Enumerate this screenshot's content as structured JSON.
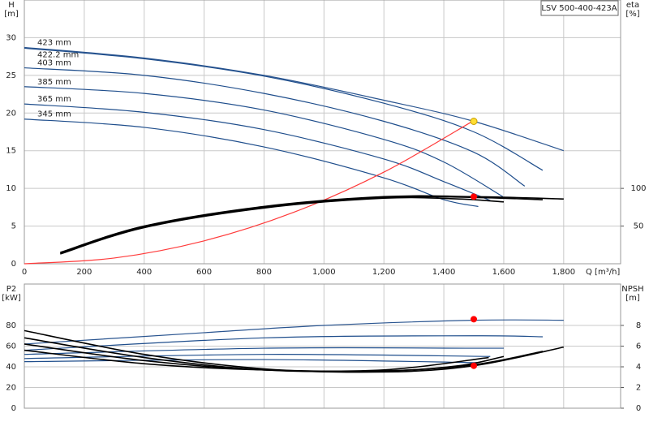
{
  "chart_data": [
    {
      "type": "line",
      "title": "LSV 500-400-423A",
      "ylabel": [
        "H",
        "[m]"
      ],
      "y2label": [
        "eta",
        "[%]"
      ],
      "xlabel": "Q [m³/h]",
      "xlim": [
        0,
        1990
      ],
      "ylim": [
        0,
        35
      ],
      "y2lim": [
        0,
        350
      ],
      "xticks": [
        0,
        200,
        400,
        600,
        800,
        {
          "value": 1000,
          "label": "1,000"
        },
        {
          "value": 1200,
          "label": "1,200"
        },
        {
          "value": 1400,
          "label": "1,400"
        },
        {
          "value": 1600,
          "label": "1,600"
        },
        {
          "value": 1800,
          "label": "1,800"
        }
      ],
      "yticks": [
        0,
        5,
        10,
        15,
        20,
        25,
        30
      ],
      "y2ticks": [
        50,
        100
      ],
      "grid": true,
      "xtick_labels": true,
      "series": [
        {
          "name": "423 mm",
          "color": "#2a5590",
          "x": [
            0,
            400,
            800,
            1200,
            1500,
            1800
          ],
          "values": [
            28.7,
            27.3,
            25,
            21.7,
            18.9,
            15
          ]
        },
        {
          "name": "422.2 mm",
          "color": "#1f4e8c",
          "x": [
            0,
            400,
            800,
            1200,
            1500,
            1730
          ],
          "values": [
            28.6,
            27.2,
            24.9,
            21.3,
            17.5,
            12.4
          ]
        },
        {
          "name": "403 mm",
          "color": "#1f4e8c",
          "x": [
            0,
            400,
            800,
            1200,
            1500,
            1670
          ],
          "values": [
            26,
            25,
            22.6,
            18.9,
            14.8,
            10.3
          ]
        },
        {
          "name": "385 mm",
          "color": "#1f4e8c",
          "x": [
            0,
            400,
            800,
            1200,
            1400,
            1597
          ],
          "values": [
            23.5,
            22.6,
            20.4,
            16.5,
            13.5,
            8.9
          ]
        },
        {
          "name": "365 mm",
          "color": "#1f4e8c",
          "x": [
            0,
            400,
            800,
            1200,
            1400,
            1555
          ],
          "values": [
            21.2,
            20.1,
            17.8,
            13.9,
            10.9,
            8.4
          ]
        },
        {
          "name": "345 mm",
          "color": "#1f4e8c",
          "x": [
            0,
            400,
            800,
            1200,
            1400,
            1515
          ],
          "values": [
            19.2,
            18.1,
            15.5,
            11.4,
            8.5,
            7.6
          ]
        },
        {
          "color": "#ff3b3b",
          "x": [
            0,
            300,
            600,
            900,
            1200,
            1500
          ],
          "values": [
            0,
            0.76,
            3.04,
            6.84,
            12.16,
            19
          ]
        },
        {
          "color": "#000000",
          "axis": "y2",
          "x": [
            120,
            400,
            800,
            1200,
            1500,
            1800
          ],
          "values": [
            15,
            50,
            76,
            89,
            89,
            86
          ]
        },
        {
          "color": "#000000",
          "axis": "y2",
          "x": [
            120,
            400,
            800,
            1200,
            1500,
            1730
          ],
          "values": [
            14,
            49,
            75,
            88,
            88,
            85
          ]
        },
        {
          "color": "#000000",
          "axis": "y2",
          "x": [
            120,
            400,
            800,
            1200,
            1450,
            1600
          ],
          "values": [
            13,
            48,
            74,
            87,
            86,
            82
          ]
        },
        {
          "color": "#ffdd33",
          "marker": true,
          "x": [
            1500
          ],
          "values": [
            18.9
          ]
        },
        {
          "color": "#ff0000",
          "marker": true,
          "axis": "y2",
          "x": [
            1500
          ],
          "values": [
            89
          ]
        }
      ]
    },
    {
      "type": "line",
      "ylabel": [
        "P2",
        "[kW]"
      ],
      "y2label": [
        "NPSH",
        "[m]"
      ],
      "xlim": [
        0,
        1990
      ],
      "ylim": [
        0,
        120
      ],
      "y2lim": [
        0,
        12
      ],
      "xticks": [
        0,
        200,
        400,
        600,
        800,
        1000,
        1200,
        1400,
        1600,
        1800
      ],
      "yticks": [
        0,
        20,
        40,
        60,
        80
      ],
      "y2ticks": [
        0,
        2,
        4,
        6,
        8
      ],
      "grid": true,
      "xtick_labels": false,
      "series": [
        {
          "color": "#2a5590",
          "x": [
            0,
            600,
            1000,
            1500,
            1800
          ],
          "values": [
            62,
            73,
            80,
            85,
            85
          ]
        },
        {
          "color": "#1f4e8c",
          "x": [
            0,
            800,
            1500,
            1730
          ],
          "values": [
            56,
            68,
            70,
            69
          ]
        },
        {
          "color": "#1f4e8c",
          "x": [
            0,
            800,
            1500,
            1600
          ],
          "values": [
            52,
            58,
            58,
            58
          ]
        },
        {
          "color": "#1f4e8c",
          "x": [
            0,
            800,
            1555
          ],
          "values": [
            48,
            52,
            50
          ]
        },
        {
          "color": "#1f4e8c",
          "x": [
            0,
            800,
            1515
          ],
          "values": [
            45,
            47,
            44
          ]
        },
        {
          "color": "#000000",
          "axis": "y2",
          "x": [
            0,
            400,
            800,
            1200,
            1500,
            1800
          ],
          "values": [
            7.5,
            5.2,
            3.8,
            3.5,
            4.1,
            5.9
          ]
        },
        {
          "color": "#000000",
          "axis": "y2",
          "x": [
            0,
            400,
            800,
            1200,
            1500,
            1730
          ],
          "values": [
            6.8,
            4.9,
            3.7,
            3.6,
            4.2,
            5.5
          ]
        },
        {
          "color": "#000000",
          "axis": "y2",
          "x": [
            0,
            400,
            800,
            1200,
            1450,
            1600
          ],
          "values": [
            6.2,
            4.6,
            3.7,
            3.6,
            4.1,
            5.0
          ]
        },
        {
          "color": "#000000",
          "axis": "y2",
          "x": [
            0,
            400,
            800,
            1200,
            1550
          ],
          "values": [
            5.6,
            4.3,
            3.7,
            3.7,
            4.9
          ]
        },
        {
          "color": "#ff0000",
          "marker": true,
          "x": [
            1500
          ],
          "values": [
            86
          ]
        },
        {
          "color": "#ff0000",
          "marker": true,
          "axis": "y2",
          "x": [
            1500
          ],
          "values": [
            4.1
          ]
        }
      ]
    }
  ]
}
